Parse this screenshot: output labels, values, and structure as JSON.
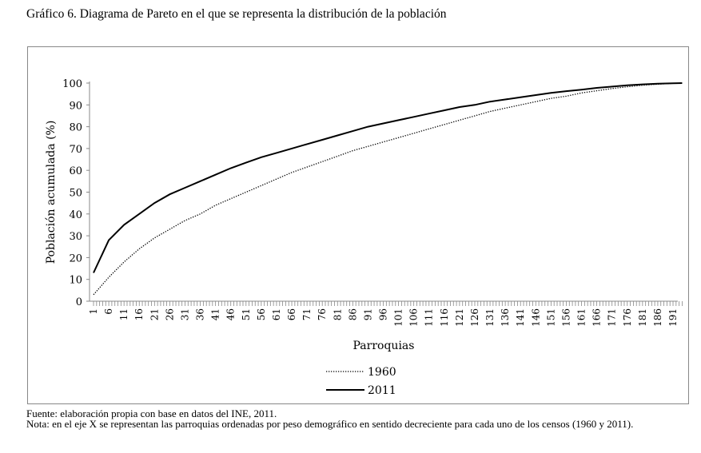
{
  "title": "Gráfico 6. Diagrama de Pareto en el que se representa la distribución de la población",
  "source": "Fuente: elaboración propia con base en datos del INE, 2011.",
  "note": "Nota: en el eje X se representan las parroquias ordenadas por peso demográfico en sentido decreciente para cada uno de los censos (1960 y 2011).",
  "chart_data": {
    "type": "line",
    "xlabel": "Parroquias",
    "ylabel": "Población acumulada (%)",
    "ylim": [
      0,
      100
    ],
    "yticks": [
      0,
      10,
      20,
      30,
      40,
      50,
      60,
      70,
      80,
      90,
      100
    ],
    "xlim": [
      1,
      194
    ],
    "xticks": [
      1,
      6,
      11,
      16,
      21,
      26,
      31,
      36,
      41,
      46,
      51,
      56,
      61,
      66,
      71,
      76,
      81,
      86,
      91,
      96,
      101,
      106,
      111,
      116,
      121,
      126,
      131,
      136,
      141,
      146,
      151,
      156,
      161,
      166,
      171,
      176,
      181,
      186,
      191
    ],
    "x": [
      1,
      6,
      11,
      16,
      21,
      26,
      31,
      36,
      41,
      46,
      51,
      56,
      61,
      66,
      71,
      76,
      81,
      86,
      91,
      96,
      101,
      106,
      111,
      116,
      121,
      126,
      131,
      136,
      141,
      146,
      151,
      156,
      161,
      166,
      171,
      176,
      181,
      186,
      191,
      194
    ],
    "legend": "bottom",
    "series": [
      {
        "name": "1960",
        "style": "dotted",
        "values": [
          3,
          11,
          18,
          24,
          29,
          33,
          37,
          40,
          44,
          47,
          50,
          53,
          56,
          59,
          61.5,
          64,
          66.5,
          69,
          71,
          73,
          75,
          77,
          79,
          81,
          83,
          85,
          87,
          88.5,
          90,
          91.5,
          93,
          94,
          95.5,
          96.5,
          97.5,
          98.3,
          99,
          99.5,
          99.9,
          100
        ]
      },
      {
        "name": "2011",
        "style": "solid",
        "values": [
          13,
          28,
          35,
          40,
          45,
          49,
          52,
          55,
          58,
          61,
          63.5,
          66,
          68,
          70,
          72,
          74,
          76,
          78,
          80,
          81.5,
          83,
          84.5,
          86,
          87.5,
          89,
          90,
          91.5,
          92.5,
          93.5,
          94.5,
          95.5,
          96.3,
          97,
          97.8,
          98.4,
          99,
          99.4,
          99.7,
          99.9,
          100
        ]
      }
    ]
  }
}
